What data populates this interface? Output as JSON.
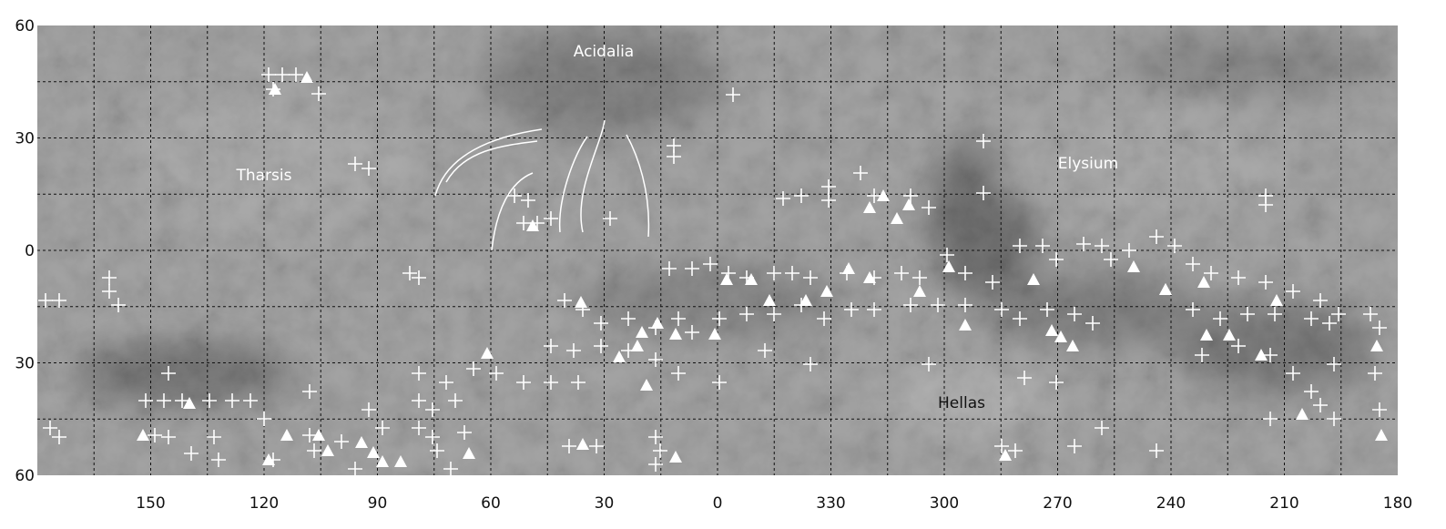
{
  "map": {
    "y_axis_labels": [
      "60",
      "30",
      "0",
      "30",
      "60"
    ],
    "x_axis_labels": [
      "150",
      "120",
      "90",
      "60",
      "30",
      "0",
      "330",
      "300",
      "270",
      "240",
      "210",
      "180"
    ],
    "regions": [
      {
        "label": "Acidalia"
      },
      {
        "label": "Tharsis"
      },
      {
        "label": "Elysium"
      },
      {
        "label": "Hellas"
      }
    ]
  }
}
